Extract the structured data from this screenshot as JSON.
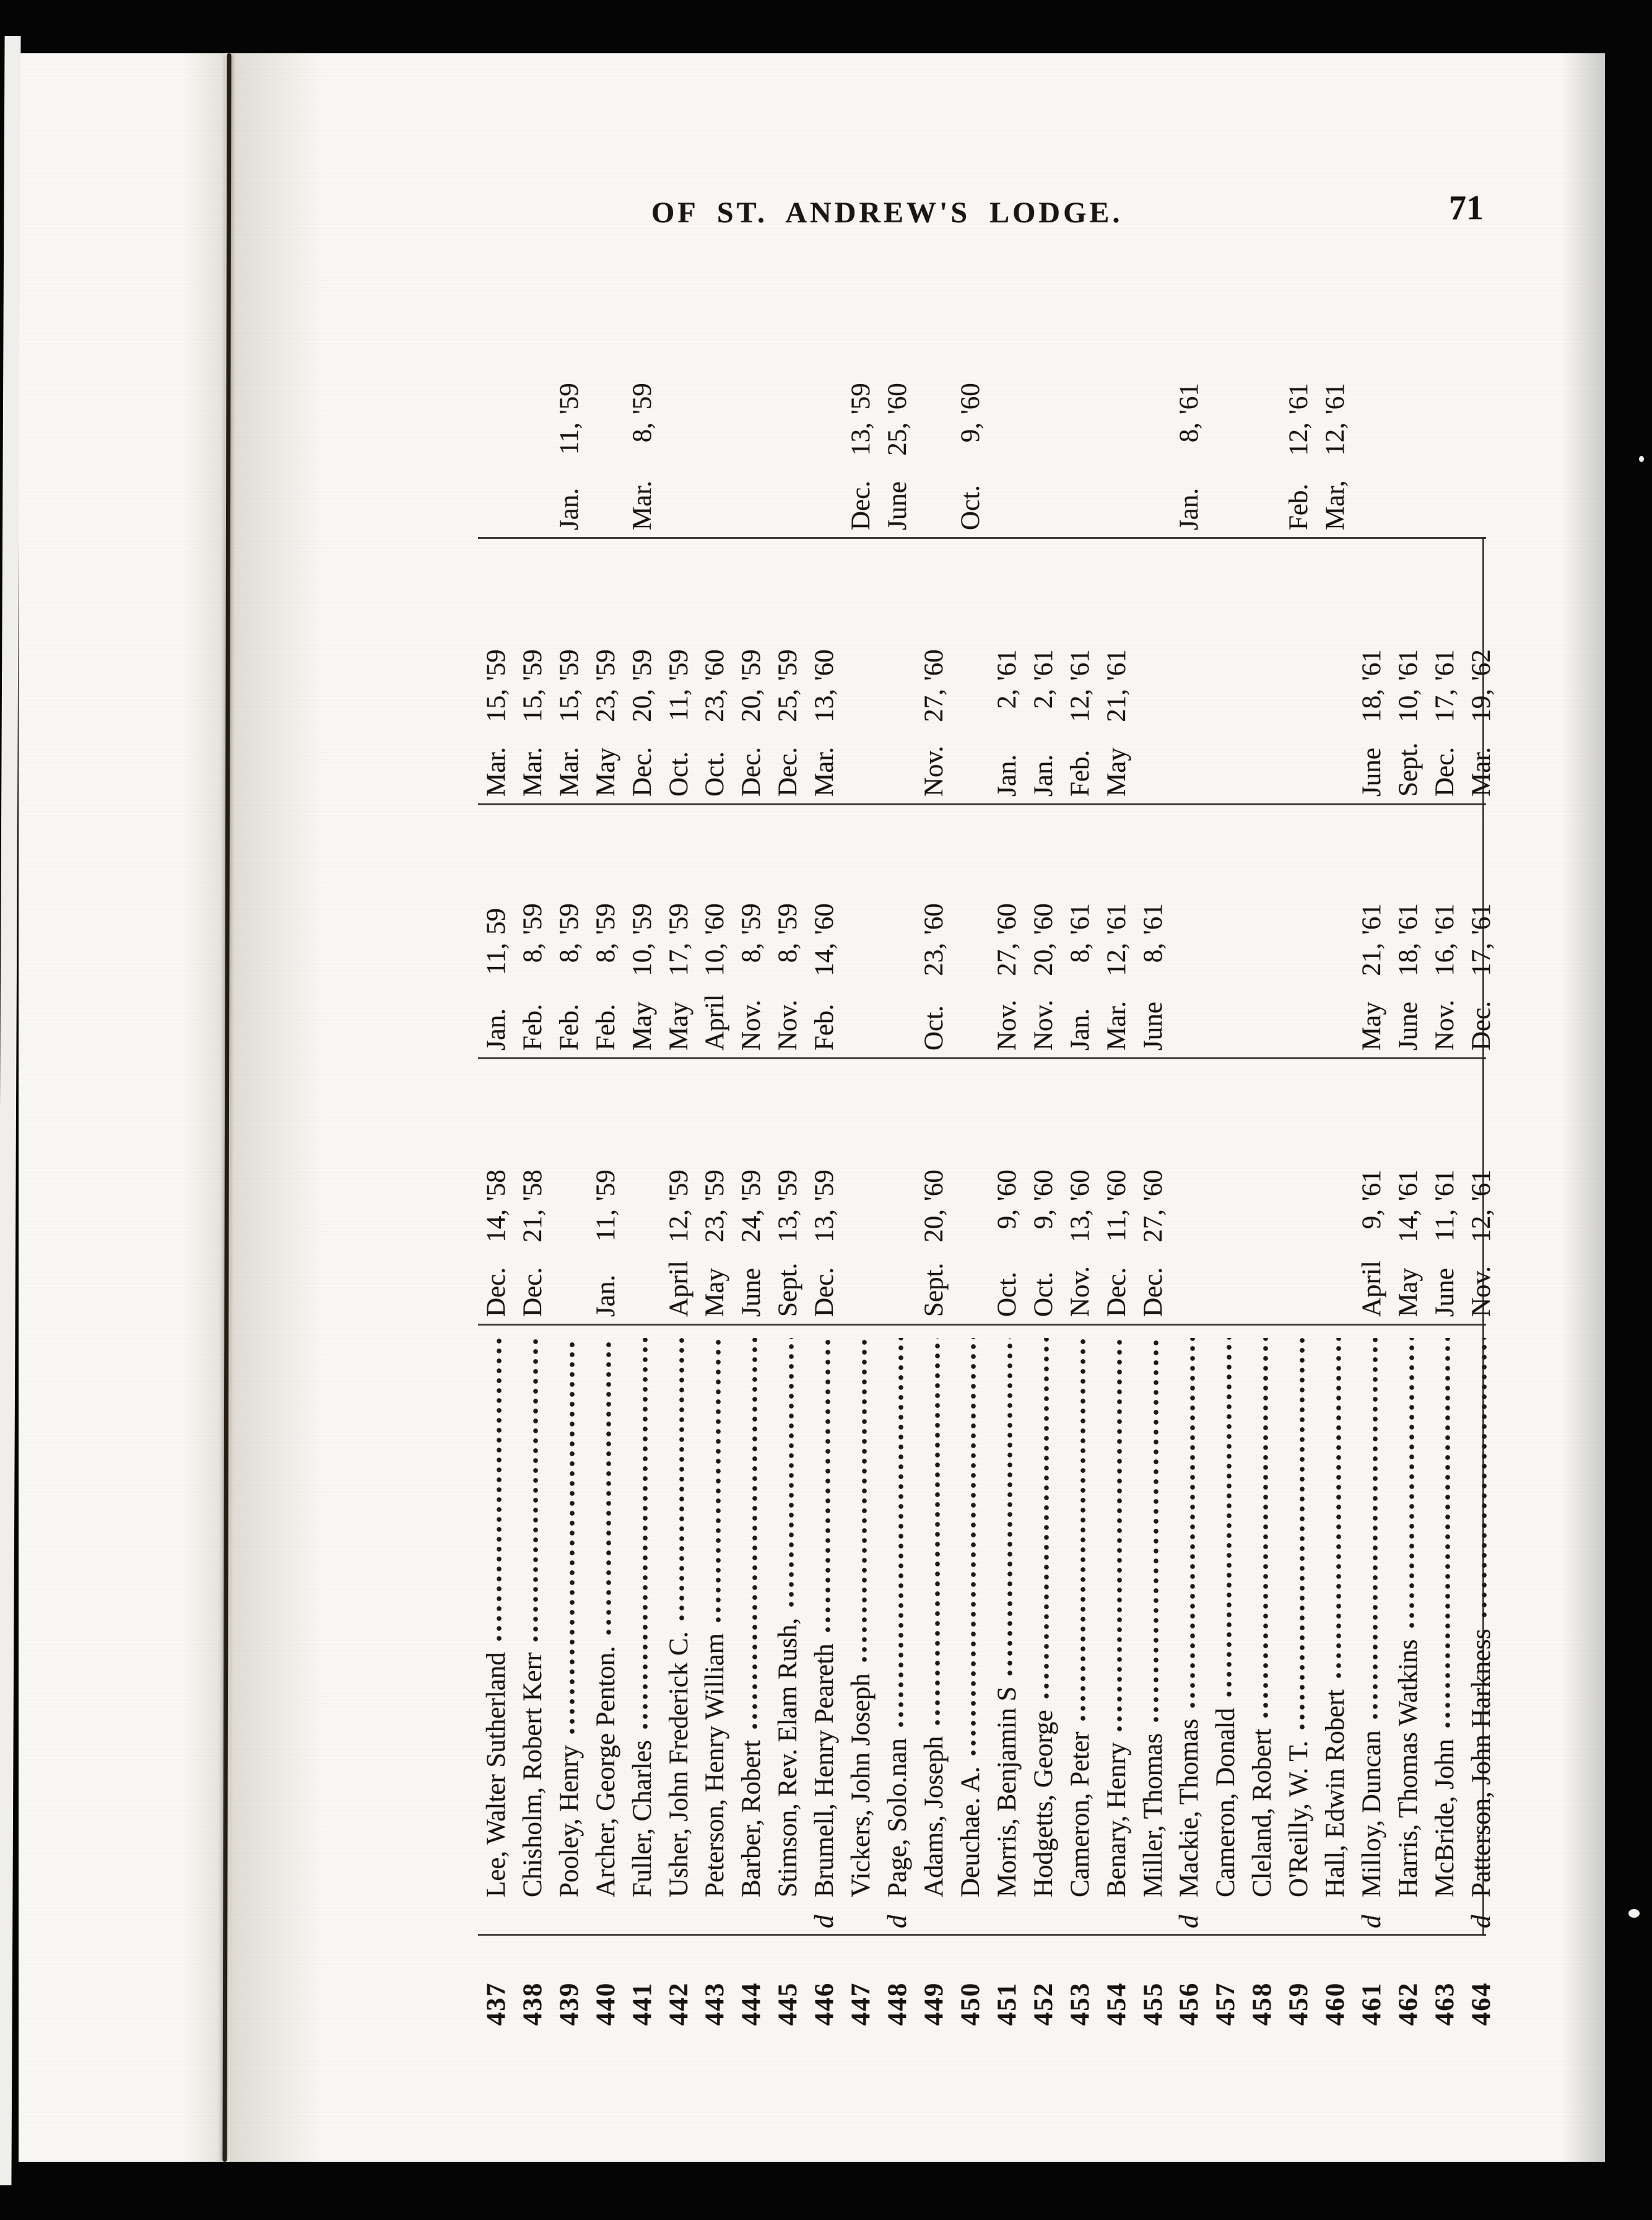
{
  "header": {
    "title": "OF ST. ANDREW'S LODGE.",
    "page_number": "71"
  },
  "register": {
    "rows": [
      {
        "no": "437",
        "flag": "",
        "name": "Lee, Walter Sutherland",
        "a": {
          "m": "Dec.",
          "dy": "14,",
          "yr": "'58"
        },
        "b": {
          "m": "Jan.",
          "dy": "11,",
          "yr": "59"
        },
        "c": {
          "m": "Mar.",
          "dy": "15,",
          "yr": "'59"
        },
        "dd": null
      },
      {
        "no": "438",
        "flag": "",
        "name": "Chisholm, Robert Kerr",
        "a": {
          "m": "Dec.",
          "dy": "21,",
          "yr": "'58"
        },
        "b": {
          "m": "Feb.",
          "dy": "8,",
          "yr": "'59"
        },
        "c": {
          "m": "Mar.",
          "dy": "15,",
          "yr": "'59"
        },
        "dd": null
      },
      {
        "no": "439",
        "flag": "",
        "name": "Pooley, Henry",
        "a": null,
        "b": {
          "m": "Feb.",
          "dy": "8,",
          "yr": "'59"
        },
        "c": {
          "m": "Mar.",
          "dy": "15,",
          "yr": "'59"
        },
        "dd": {
          "m": "Jan.",
          "dy": "11,",
          "yr": "'59"
        }
      },
      {
        "no": "440",
        "flag": "",
        "name": "Archer, George Penton.",
        "a": {
          "m": "Jan.",
          "dy": "11,",
          "yr": "'59"
        },
        "b": {
          "m": "Feb.",
          "dy": "8,",
          "yr": "'59"
        },
        "c": {
          "m": "May",
          "dy": "23,",
          "yr": "'59"
        },
        "dd": null
      },
      {
        "no": "441",
        "flag": "",
        "name": "Fuller, Charles",
        "a": null,
        "b": {
          "m": "May",
          "dy": "10,",
          "yr": "'59"
        },
        "c": {
          "m": "Dec.",
          "dy": "20,",
          "yr": "'59"
        },
        "dd": {
          "m": "Mar.",
          "dy": "8,",
          "yr": "'59"
        }
      },
      {
        "no": "442",
        "flag": "",
        "name": "Usher, John Frederick C.",
        "a": {
          "m": "April",
          "dy": "12,",
          "yr": "'59"
        },
        "b": {
          "m": "May",
          "dy": "17,",
          "yr": "'59"
        },
        "c": {
          "m": "Oct.",
          "dy": "11,",
          "yr": "'59"
        },
        "dd": null
      },
      {
        "no": "443",
        "flag": "",
        "name": "Peterson, Henry William",
        "a": {
          "m": "May",
          "dy": "23,",
          "yr": "'59"
        },
        "b": {
          "m": "April",
          "dy": "10,",
          "yr": "'60"
        },
        "c": {
          "m": "Oct.",
          "dy": "23,",
          "yr": "'60"
        },
        "dd": null
      },
      {
        "no": "444",
        "flag": "",
        "name": "Barber, Robert",
        "a": {
          "m": "June",
          "dy": "24,",
          "yr": "'59"
        },
        "b": {
          "m": "Nov.",
          "dy": "8,",
          "yr": "'59"
        },
        "c": {
          "m": "Dec.",
          "dy": "20,",
          "yr": "'59"
        },
        "dd": null
      },
      {
        "no": "445",
        "flag": "",
        "name": "Stimson, Rev. Elam Rush,",
        "a": {
          "m": "Sept.",
          "dy": "13,",
          "yr": "'59"
        },
        "b": {
          "m": "Nov.",
          "dy": "8,",
          "yr": "'59"
        },
        "c": {
          "m": "Dec.",
          "dy": "25,",
          "yr": "'59"
        },
        "dd": null
      },
      {
        "no": "446",
        "flag": "d",
        "name": "Brumell, Henry Peareth",
        "a": {
          "m": "Dec.",
          "dy": "13,",
          "yr": "'59"
        },
        "b": {
          "m": "Feb.",
          "dy": "14,",
          "yr": "'60"
        },
        "c": {
          "m": "Mar.",
          "dy": "13,",
          "yr": "'60"
        },
        "dd": null
      },
      {
        "no": "447",
        "flag": "",
        "name": "Vickers, John Joseph",
        "a": null,
        "b": null,
        "c": null,
        "dd": {
          "m": "Dec.",
          "dy": "13,",
          "yr": "'59"
        }
      },
      {
        "no": "448",
        "flag": "d",
        "name": "Page, Solo.nan",
        "a": null,
        "b": null,
        "c": null,
        "dd": {
          "m": "June",
          "dy": "25,",
          "yr": "'60"
        }
      },
      {
        "no": "449",
        "flag": "",
        "name": "Adams, Joseph",
        "a": {
          "m": "Sept.",
          "dy": "20,",
          "yr": "'60"
        },
        "b": {
          "m": "Oct.",
          "dy": "23,",
          "yr": "'60"
        },
        "c": {
          "m": "Nov.",
          "dy": "27,",
          "yr": "'60"
        },
        "dd": null
      },
      {
        "no": "450",
        "flag": "",
        "name": "Deuchae. A.",
        "a": null,
        "b": null,
        "c": null,
        "dd": {
          "m": "Oct.",
          "dy": "9,",
          "yr": "'60"
        }
      },
      {
        "no": "451",
        "flag": "",
        "name": "Morris, Benjamin S",
        "a": {
          "m": "Oct.",
          "dy": "9,",
          "yr": "'60"
        },
        "b": {
          "m": "Nov.",
          "dy": "27,",
          "yr": "'60"
        },
        "c": {
          "m": "Jan.",
          "dy": "2,",
          "yr": "'61"
        },
        "dd": null
      },
      {
        "no": "452",
        "flag": "",
        "name": "Hodgetts, George",
        "a": {
          "m": "Oct.",
          "dy": "9,",
          "yr": "'60"
        },
        "b": {
          "m": "Nov.",
          "dy": "20,",
          "yr": "'60"
        },
        "c": {
          "m": "Jan.",
          "dy": "2,",
          "yr": "'61"
        },
        "dd": null
      },
      {
        "no": "453",
        "flag": "",
        "name": "Cameron, Peter",
        "a": {
          "m": "Nov.",
          "dy": "13,",
          "yr": "'60"
        },
        "b": {
          "m": "Jan.",
          "dy": "8,",
          "yr": "'61"
        },
        "c": {
          "m": "Feb.",
          "dy": "12,",
          "yr": "'61"
        },
        "dd": null
      },
      {
        "no": "454",
        "flag": "",
        "name": "Benary, Henry",
        "a": {
          "m": "Dec.",
          "dy": "11,",
          "yr": "'60"
        },
        "b": {
          "m": "Mar.",
          "dy": "12,",
          "yr": "'61"
        },
        "c": {
          "m": "May",
          "dy": "21,",
          "yr": "'61"
        },
        "dd": null
      },
      {
        "no": "455",
        "flag": "",
        "name": "Miller, Thomas",
        "a": {
          "m": "Dec.",
          "dy": "27,",
          "yr": "'60"
        },
        "b": {
          "m": "June",
          "dy": "8,",
          "yr": "'61"
        },
        "c": null,
        "dd": null
      },
      {
        "no": "456",
        "flag": "d",
        "name": "Mackie, Thomas",
        "a": null,
        "b": null,
        "c": null,
        "dd": {
          "m": "Jan.",
          "dy": "8,",
          "yr": "'61"
        }
      },
      {
        "no": "457",
        "flag": "",
        "name": "Cameron, Donald",
        "a": null,
        "b": null,
        "c": null,
        "dd": null
      },
      {
        "no": "458",
        "flag": "",
        "name": "Cleland, Robert",
        "a": null,
        "b": null,
        "c": null,
        "dd": null
      },
      {
        "no": "459",
        "flag": "",
        "name": "O'Reilly, W. T.",
        "a": null,
        "b": null,
        "c": null,
        "dd": {
          "m": "Feb.",
          "dy": "12,",
          "yr": "'61"
        }
      },
      {
        "no": "460",
        "flag": "",
        "name": "Hall, Edwin Robert",
        "a": null,
        "b": null,
        "c": null,
        "dd": {
          "m": "Mar,",
          "dy": "12,",
          "yr": "'61"
        }
      },
      {
        "no": "461",
        "flag": "d",
        "name": "Milloy, Duncan",
        "a": {
          "m": "April",
          "dy": "9,",
          "yr": "'61"
        },
        "b": {
          "m": "May",
          "dy": "21,",
          "yr": "'61"
        },
        "c": {
          "m": "June",
          "dy": "18,",
          "yr": "'61"
        },
        "dd": null
      },
      {
        "no": "462",
        "flag": "",
        "name": "Harris, Thomas Watkins",
        "a": {
          "m": "May",
          "dy": "14,",
          "yr": "'61"
        },
        "b": {
          "m": "June",
          "dy": "18,",
          "yr": "'61"
        },
        "c": {
          "m": "Sept.",
          "dy": "10,",
          "yr": "'61"
        },
        "dd": null
      },
      {
        "no": "463",
        "flag": "",
        "name": "McBride, John",
        "a": {
          "m": "June",
          "dy": "11,",
          "yr": "'61"
        },
        "b": {
          "m": "Nov.",
          "dy": "16,",
          "yr": "'61"
        },
        "c": {
          "m": "Dec.",
          "dy": "17,",
          "yr": "'61"
        },
        "dd": null
      },
      {
        "no": "464",
        "flag": "d",
        "name": "Patterson, John Harkness",
        "a": {
          "m": "Nov.",
          "dy": "12,",
          "yr": "'61"
        },
        "b": {
          "m": "Dec.",
          "dy": "17,",
          "yr": "'61"
        },
        "c": {
          "m": "Mar.",
          "dy": "19,",
          "yr": "'62"
        },
        "dd": null
      }
    ]
  }
}
